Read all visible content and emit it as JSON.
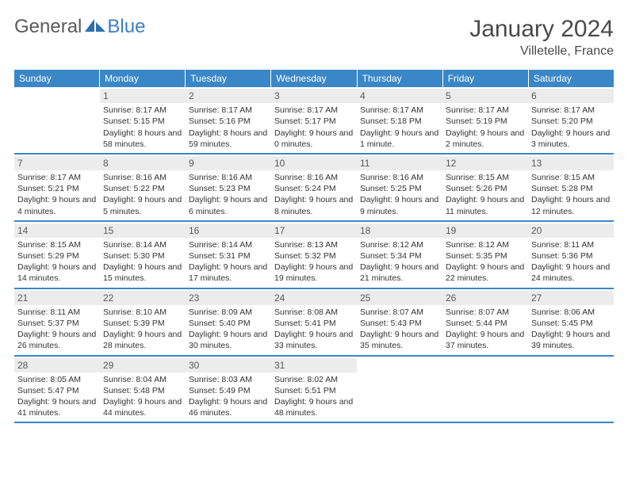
{
  "brand": {
    "part1": "General",
    "part2": "Blue"
  },
  "title": "January 2024",
  "location": "Villetelle, France",
  "colors": {
    "header_bg": "#3a87c7",
    "header_text": "#ffffff",
    "band_bg": "#ececec",
    "divider": "#3a87c7",
    "logo_gray": "#5a5a5a",
    "logo_blue": "#3a7fc4"
  },
  "weekdays": [
    "Sunday",
    "Monday",
    "Tuesday",
    "Wednesday",
    "Thursday",
    "Friday",
    "Saturday"
  ],
  "weeks": [
    [
      {
        "empty": true
      },
      {
        "n": "1",
        "sunrise": "8:17 AM",
        "sunset": "5:15 PM",
        "daylight": "8 hours and 58 minutes."
      },
      {
        "n": "2",
        "sunrise": "8:17 AM",
        "sunset": "5:16 PM",
        "daylight": "8 hours and 59 minutes."
      },
      {
        "n": "3",
        "sunrise": "8:17 AM",
        "sunset": "5:17 PM",
        "daylight": "9 hours and 0 minutes."
      },
      {
        "n": "4",
        "sunrise": "8:17 AM",
        "sunset": "5:18 PM",
        "daylight": "9 hours and 1 minute."
      },
      {
        "n": "5",
        "sunrise": "8:17 AM",
        "sunset": "5:19 PM",
        "daylight": "9 hours and 2 minutes."
      },
      {
        "n": "6",
        "sunrise": "8:17 AM",
        "sunset": "5:20 PM",
        "daylight": "9 hours and 3 minutes."
      }
    ],
    [
      {
        "n": "7",
        "sunrise": "8:17 AM",
        "sunset": "5:21 PM",
        "daylight": "9 hours and 4 minutes."
      },
      {
        "n": "8",
        "sunrise": "8:16 AM",
        "sunset": "5:22 PM",
        "daylight": "9 hours and 5 minutes."
      },
      {
        "n": "9",
        "sunrise": "8:16 AM",
        "sunset": "5:23 PM",
        "daylight": "9 hours and 6 minutes."
      },
      {
        "n": "10",
        "sunrise": "8:16 AM",
        "sunset": "5:24 PM",
        "daylight": "9 hours and 8 minutes."
      },
      {
        "n": "11",
        "sunrise": "8:16 AM",
        "sunset": "5:25 PM",
        "daylight": "9 hours and 9 minutes."
      },
      {
        "n": "12",
        "sunrise": "8:15 AM",
        "sunset": "5:26 PM",
        "daylight": "9 hours and 11 minutes."
      },
      {
        "n": "13",
        "sunrise": "8:15 AM",
        "sunset": "5:28 PM",
        "daylight": "9 hours and 12 minutes."
      }
    ],
    [
      {
        "n": "14",
        "sunrise": "8:15 AM",
        "sunset": "5:29 PM",
        "daylight": "9 hours and 14 minutes."
      },
      {
        "n": "15",
        "sunrise": "8:14 AM",
        "sunset": "5:30 PM",
        "daylight": "9 hours and 15 minutes."
      },
      {
        "n": "16",
        "sunrise": "8:14 AM",
        "sunset": "5:31 PM",
        "daylight": "9 hours and 17 minutes."
      },
      {
        "n": "17",
        "sunrise": "8:13 AM",
        "sunset": "5:32 PM",
        "daylight": "9 hours and 19 minutes."
      },
      {
        "n": "18",
        "sunrise": "8:12 AM",
        "sunset": "5:34 PM",
        "daylight": "9 hours and 21 minutes."
      },
      {
        "n": "19",
        "sunrise": "8:12 AM",
        "sunset": "5:35 PM",
        "daylight": "9 hours and 22 minutes."
      },
      {
        "n": "20",
        "sunrise": "8:11 AM",
        "sunset": "5:36 PM",
        "daylight": "9 hours and 24 minutes."
      }
    ],
    [
      {
        "n": "21",
        "sunrise": "8:11 AM",
        "sunset": "5:37 PM",
        "daylight": "9 hours and 26 minutes."
      },
      {
        "n": "22",
        "sunrise": "8:10 AM",
        "sunset": "5:39 PM",
        "daylight": "9 hours and 28 minutes."
      },
      {
        "n": "23",
        "sunrise": "8:09 AM",
        "sunset": "5:40 PM",
        "daylight": "9 hours and 30 minutes."
      },
      {
        "n": "24",
        "sunrise": "8:08 AM",
        "sunset": "5:41 PM",
        "daylight": "9 hours and 33 minutes."
      },
      {
        "n": "25",
        "sunrise": "8:07 AM",
        "sunset": "5:43 PM",
        "daylight": "9 hours and 35 minutes."
      },
      {
        "n": "26",
        "sunrise": "8:07 AM",
        "sunset": "5:44 PM",
        "daylight": "9 hours and 37 minutes."
      },
      {
        "n": "27",
        "sunrise": "8:06 AM",
        "sunset": "5:45 PM",
        "daylight": "9 hours and 39 minutes."
      }
    ],
    [
      {
        "n": "28",
        "sunrise": "8:05 AM",
        "sunset": "5:47 PM",
        "daylight": "9 hours and 41 minutes."
      },
      {
        "n": "29",
        "sunrise": "8:04 AM",
        "sunset": "5:48 PM",
        "daylight": "9 hours and 44 minutes."
      },
      {
        "n": "30",
        "sunrise": "8:03 AM",
        "sunset": "5:49 PM",
        "daylight": "9 hours and 46 minutes."
      },
      {
        "n": "31",
        "sunrise": "8:02 AM",
        "sunset": "5:51 PM",
        "daylight": "9 hours and 48 minutes."
      },
      {
        "empty": true
      },
      {
        "empty": true
      },
      {
        "empty": true
      }
    ]
  ],
  "labels": {
    "sunrise": "Sunrise:",
    "sunset": "Sunset:",
    "daylight": "Daylight:"
  }
}
